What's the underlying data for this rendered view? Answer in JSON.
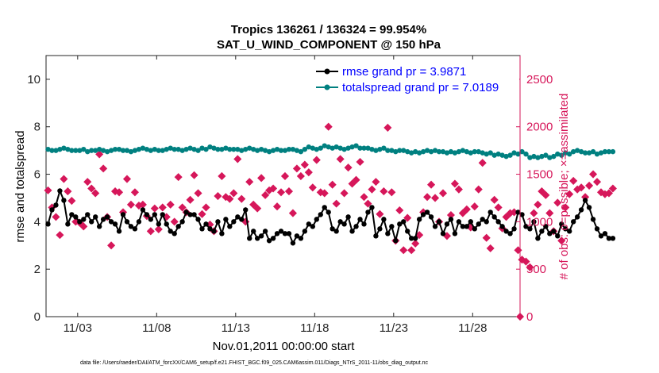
{
  "chart_data": {
    "type": "line",
    "title_line1": "Tropics 136261 / 136324 = 99.954%",
    "title_line2": "SAT_U_WIND_COMPONENT @ 150 hPa",
    "xlabel": "Nov.01,2011 00:00:00 start",
    "ylabel_left": "rmse and totalspread",
    "ylabel_right": "# of obs: o=possible; ×=assimilated",
    "footer": "data file: /Users/raeder/DAI/ATM_forcXX/CAM6_setup/f.e21.FHIST_BGC.f09_025.CAM6assim.011/Diags_NTrS_2011-11/obs_diag_output.nc",
    "x_range_days": [
      0,
      30
    ],
    "x_ticks": [
      {
        "label": "11/03",
        "day": 2
      },
      {
        "label": "11/08",
        "day": 7
      },
      {
        "label": "11/13",
        "day": 12
      },
      {
        "label": "11/18",
        "day": 17
      },
      {
        "label": "11/23",
        "day": 22
      },
      {
        "label": "11/28",
        "day": 27
      }
    ],
    "ylim_left": [
      0,
      11
    ],
    "y_ticks_left": [
      "0",
      "2",
      "4",
      "6",
      "8",
      "10"
    ],
    "ylim_right": [
      0,
      2750
    ],
    "y_ticks_right": [
      "0",
      "500",
      "1000",
      "1500",
      "2000",
      "2500"
    ],
    "colors": {
      "rmse": "#000000",
      "spread": "#008080",
      "obs": "#d6175a",
      "legend_text": "#0000ff",
      "axis": "#262626"
    },
    "points_per_day": 4,
    "series": [
      {
        "name": "rmse grand pr = 3.9871",
        "legend": "rmse grand pr = 3.9871",
        "axis": "left",
        "values": [
          3.9,
          4.5,
          4.7,
          5.3,
          4.9,
          3.9,
          4.3,
          4.2,
          4.0,
          4.1,
          4.3,
          4.0,
          4.2,
          3.8,
          4.1,
          4.2,
          4.0,
          3.9,
          3.6,
          4.3,
          4.0,
          3.8,
          3.7,
          4.0,
          4.5,
          4.3,
          4.1,
          4.3,
          3.9,
          4.3,
          3.9,
          3.6,
          3.5,
          3.8,
          4.0,
          4.4,
          4.3,
          4.3,
          4.1,
          3.7,
          3.9,
          3.7,
          3.6,
          4.0,
          3.5,
          4.1,
          3.8,
          4.0,
          4.2,
          4.1,
          4.5,
          3.3,
          3.6,
          3.3,
          3.4,
          3.6,
          3.2,
          3.3,
          3.5,
          3.6,
          3.5,
          3.5,
          3.1,
          3.4,
          3.3,
          3.6,
          3.9,
          3.8,
          4.1,
          4.3,
          4.6,
          4.4,
          3.7,
          3.6,
          4.0,
          3.9,
          4.2,
          3.6,
          3.8,
          4.1,
          3.9,
          4.4,
          4.6,
          3.4,
          3.7,
          4.1,
          3.5,
          3.8,
          3.2,
          3.9,
          4.0,
          3.6,
          3.3,
          3.3,
          4.1,
          4.3,
          4.4,
          4.2,
          3.8,
          4.0,
          3.5,
          3.9,
          4.1,
          3.5,
          4.0,
          3.8,
          3.8,
          4.0,
          3.7,
          3.9,
          4.1,
          4.0,
          4.4,
          4.2,
          4.0,
          3.8,
          3.6,
          3.5,
          3.7,
          4.4,
          4.3,
          3.8,
          3.7,
          4.0,
          3.3,
          3.6,
          3.8,
          3.5,
          3.6,
          3.4,
          3.9,
          3.7,
          3.6,
          4.0,
          4.2,
          4.5,
          4.9,
          4.6,
          4.1,
          3.7,
          3.4,
          3.5,
          3.3,
          3.3
        ]
      },
      {
        "name": "totalspread grand pr = 7.0189",
        "legend": "totalspread grand pr = 7.0189",
        "axis": "left",
        "values": [
          7.05,
          7.0,
          7.0,
          7.05,
          7.1,
          7.05,
          7.0,
          7.0,
          7.0,
          7.05,
          6.95,
          7.0,
          7.0,
          7.05,
          7.0,
          6.95,
          7.0,
          7.05,
          7.05,
          7.0,
          7.0,
          6.95,
          7.0,
          7.05,
          7.1,
          7.05,
          7.0,
          7.05,
          7.0,
          7.0,
          7.05,
          7.1,
          7.05,
          7.05,
          7.0,
          7.05,
          7.1,
          7.05,
          7.0,
          7.1,
          7.05,
          7.15,
          7.1,
          7.05,
          7.05,
          7.1,
          7.05,
          7.05,
          7.05,
          7.0,
          7.05,
          7.1,
          7.05,
          7.0,
          7.05,
          7.0,
          6.95,
          7.0,
          7.05,
          7.0,
          7.0,
          7.05,
          7.05,
          7.0,
          6.95,
          7.05,
          7.15,
          7.1,
          7.05,
          7.1,
          7.2,
          7.15,
          7.1,
          7.15,
          7.1,
          7.05,
          7.1,
          7.15,
          7.2,
          7.1,
          7.1,
          7.1,
          7.05,
          7.0,
          7.05,
          7.1,
          7.0,
          7.0,
          6.95,
          7.0,
          7.0,
          6.95,
          6.9,
          6.95,
          6.9,
          6.95,
          7.0,
          6.95,
          7.0,
          6.95,
          6.95,
          6.9,
          6.95,
          6.9,
          6.95,
          7.0,
          6.95,
          6.9,
          6.95,
          6.95,
          6.9,
          6.85,
          6.9,
          6.8,
          6.85,
          6.8,
          6.75,
          6.8,
          6.9,
          6.85,
          6.95,
          6.85,
          6.7,
          6.75,
          6.7,
          6.75,
          6.8,
          6.7,
          6.75,
          6.85,
          6.8,
          6.9,
          6.85,
          6.95,
          7.0,
          6.95,
          6.9,
          6.9,
          6.95,
          6.85,
          6.9,
          6.95,
          6.95,
          6.95
        ]
      },
      {
        "name": "obs assimilated",
        "axis": "right",
        "values": [
          1330,
          1150,
          1050,
          860,
          1450,
          1320,
          1220,
          1000,
          990,
          950,
          1420,
          1350,
          1300,
          1710,
          1560,
          1050,
          750,
          1320,
          1310,
          1100,
          1450,
          1180,
          1310,
          1170,
          1180,
          1060,
          900,
          1140,
          920,
          1150,
          1050,
          1180,
          1000,
          1470,
          1150,
          1100,
          1230,
          1490,
          1300,
          1080,
          1150,
          970,
          900,
          1270,
          1480,
          1260,
          1240,
          1300,
          1660,
          1240,
          1000,
          1420,
          1180,
          1140,
          1460,
          1280,
          1330,
          1350,
          1160,
          1310,
          1480,
          1320,
          1090,
          1560,
          1480,
          1600,
          1520,
          1360,
          1650,
          1310,
          1300,
          2000,
          1390,
          1190,
          1660,
          1300,
          1570,
          1400,
          1440,
          1630,
          1260,
          1190,
          1340,
          1420,
          1080,
          1320,
          1990,
          1310,
          800,
          1120,
          700,
          1040,
          700,
          770,
          860,
          1100,
          1260,
          1390,
          1250,
          1000,
          1300,
          850,
          1070,
          1400,
          1340,
          1090,
          1130,
          940,
          1160,
          1340,
          1620,
          830,
          720,
          1230,
          1150,
          930,
          1050,
          1090,
          1100,
          700,
          600,
          580,
          520,
          1090,
          1180,
          1320,
          1280,
          1090,
          900,
          1200,
          800,
          1150,
          1290,
          1430,
          1340,
          1360,
          1260,
          1380,
          1500,
          1420,
          1310,
          1290,
          1300,
          1350
        ]
      }
    ],
    "final_value_right": 0
  }
}
